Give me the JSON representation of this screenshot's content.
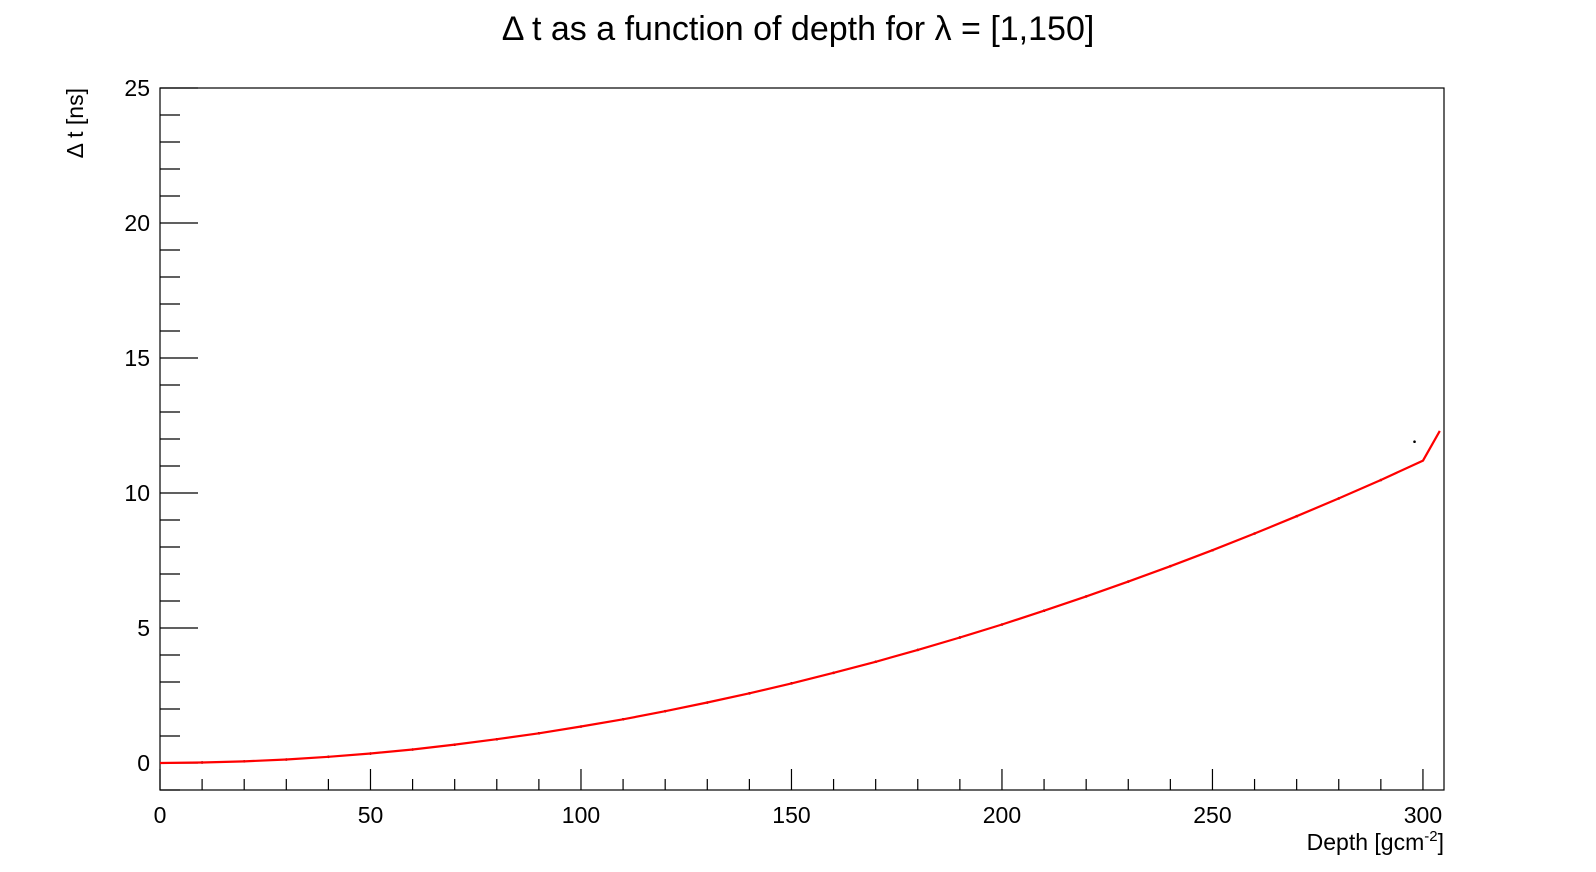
{
  "chart_data": {
    "type": "scatter",
    "title": "Δ t as a function of depth for  λ = [1,150]",
    "xlabel_base": "Depth [gcm",
    "xlabel_sup": "-2",
    "xlabel_end": "]",
    "ylabel": "Δ t [ns]",
    "xlim": [
      0,
      305
    ],
    "ylim": [
      -1,
      25
    ],
    "x_ticks": [
      0,
      50,
      100,
      150,
      200,
      250,
      300
    ],
    "y_ticks": [
      0,
      5,
      10,
      15,
      20,
      25
    ],
    "grid": false,
    "legend": "none",
    "colors": {
      "points": "#000000",
      "fit": "#ff0000",
      "frame": "#000000"
    },
    "series": [
      {
        "kind": "points",
        "x": [
          10,
          20,
          30,
          40,
          50,
          60,
          70,
          80,
          90,
          100,
          110,
          120,
          130,
          140,
          150,
          160,
          170,
          180,
          190,
          200,
          210,
          220,
          230,
          240,
          250,
          260,
          270,
          280,
          290,
          298
        ],
        "y": [
          0.02,
          0.06,
          0.13,
          0.23,
          0.35,
          0.5,
          0.68,
          0.88,
          1.1,
          1.35,
          1.62,
          1.92,
          2.24,
          2.58,
          2.95,
          3.34,
          3.75,
          4.19,
          4.65,
          5.13,
          5.64,
          6.17,
          6.72,
          7.29,
          7.88,
          8.5,
          9.14,
          9.8,
          10.48,
          11.9
        ]
      },
      {
        "kind": "fit",
        "x": [
          0,
          10,
          20,
          30,
          40,
          50,
          60,
          70,
          80,
          90,
          100,
          110,
          120,
          130,
          140,
          150,
          160,
          170,
          180,
          190,
          200,
          210,
          220,
          230,
          240,
          250,
          260,
          270,
          280,
          290,
          300,
          304
        ],
        "y": [
          0.0,
          0.02,
          0.06,
          0.13,
          0.23,
          0.35,
          0.5,
          0.68,
          0.88,
          1.1,
          1.35,
          1.62,
          1.92,
          2.24,
          2.58,
          2.95,
          3.34,
          3.75,
          4.19,
          4.65,
          5.13,
          5.64,
          6.17,
          6.72,
          7.29,
          7.88,
          8.5,
          9.14,
          9.8,
          10.48,
          11.2,
          12.3
        ]
      }
    ]
  }
}
